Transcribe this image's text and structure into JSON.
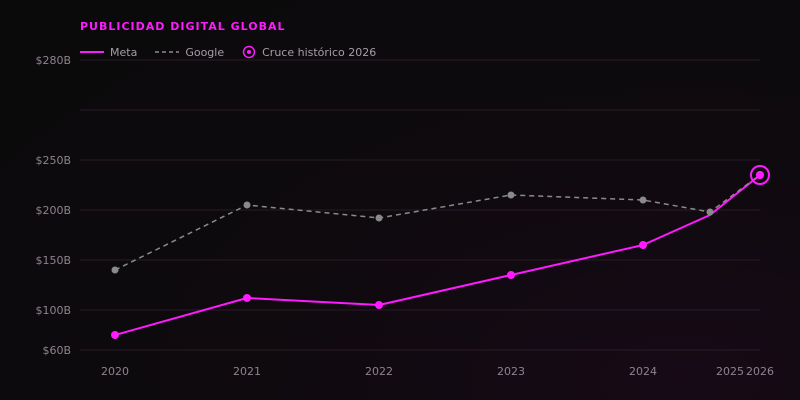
{
  "colors": {
    "meta": "#ff1aff",
    "google": "#8a8a8a",
    "title": "#ff1aff",
    "tick_text": "#8f828f",
    "grid": "#2a1a28"
  },
  "chart_data": {
    "type": "line",
    "title": "PUBLICIDAD DIGITAL GLOBAL",
    "xlabel": "",
    "ylabel": "",
    "x": [
      2020,
      2021,
      2022,
      2023,
      2024,
      2025,
      2026
    ],
    "x_ticks": [
      "2020",
      "2021",
      "2022",
      "2023",
      "2024",
      "2025",
      "2026"
    ],
    "y_ticks": [
      {
        "value": 60,
        "label": "$60B"
      },
      {
        "value": 100,
        "label": "$100B"
      },
      {
        "value": 150,
        "label": "$150B"
      },
      {
        "value": 200,
        "label": "$200B"
      },
      {
        "value": 250,
        "label": "$250B"
      },
      {
        "value": 280,
        "label": "$280B"
      }
    ],
    "grid": true,
    "legend_position": "top-left",
    "series": [
      {
        "name": "Meta",
        "style": "solid",
        "values": [
          75,
          112,
          105,
          135,
          165,
          195,
          235
        ],
        "markers": [
          true,
          true,
          true,
          true,
          true,
          false,
          true
        ]
      },
      {
        "name": "Google",
        "style": "dashed",
        "values": [
          140,
          205,
          192,
          215,
          210,
          198,
          235
        ],
        "markers": [
          true,
          true,
          true,
          true,
          true,
          true,
          false
        ]
      }
    ],
    "annotation": {
      "label": "Cruce histórico 2026",
      "x": 2026,
      "y": 235
    }
  }
}
